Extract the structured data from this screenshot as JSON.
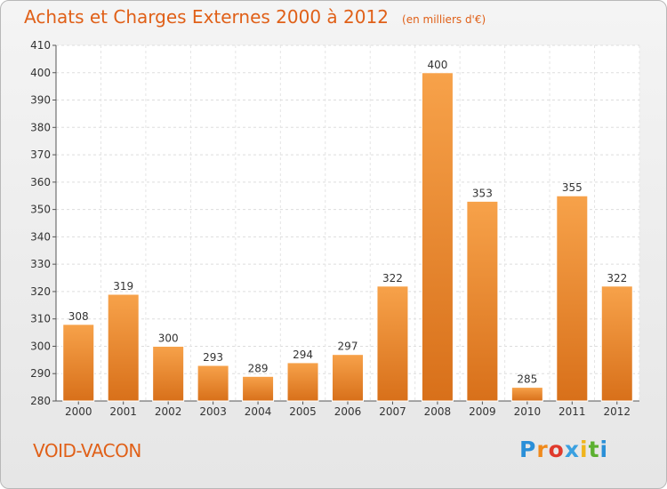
{
  "header": {
    "title": "Achats et Charges Externes 2000 à 2012",
    "subtitle": "(en milliers d'€)"
  },
  "footer": {
    "commune": "VOID-VACON",
    "logo_letters": [
      "P",
      "r",
      "o",
      "x",
      "i",
      "t",
      "i"
    ],
    "logo_colors": [
      "#2a8fd8",
      "#f08a1c",
      "#e03a2c",
      "#3aa0e0",
      "#f0b41c",
      "#5cb030",
      "#2a8fd8"
    ]
  },
  "chart_data": {
    "type": "bar",
    "categories": [
      "2000",
      "2001",
      "2002",
      "2003",
      "2004",
      "2005",
      "2006",
      "2007",
      "2008",
      "2009",
      "2010",
      "2011",
      "2012"
    ],
    "values": [
      308,
      319,
      300,
      293,
      289,
      294,
      297,
      322,
      400,
      353,
      285,
      355,
      322
    ],
    "title": "Achats et Charges Externes 2000 à 2012",
    "subtitle": "(en milliers d'€)",
    "ylim": [
      280,
      410
    ],
    "yticks": [
      280,
      290,
      300,
      310,
      320,
      330,
      340,
      350,
      360,
      370,
      380,
      390,
      400,
      410
    ],
    "grid": true,
    "bar_color": "#f08a2a"
  }
}
